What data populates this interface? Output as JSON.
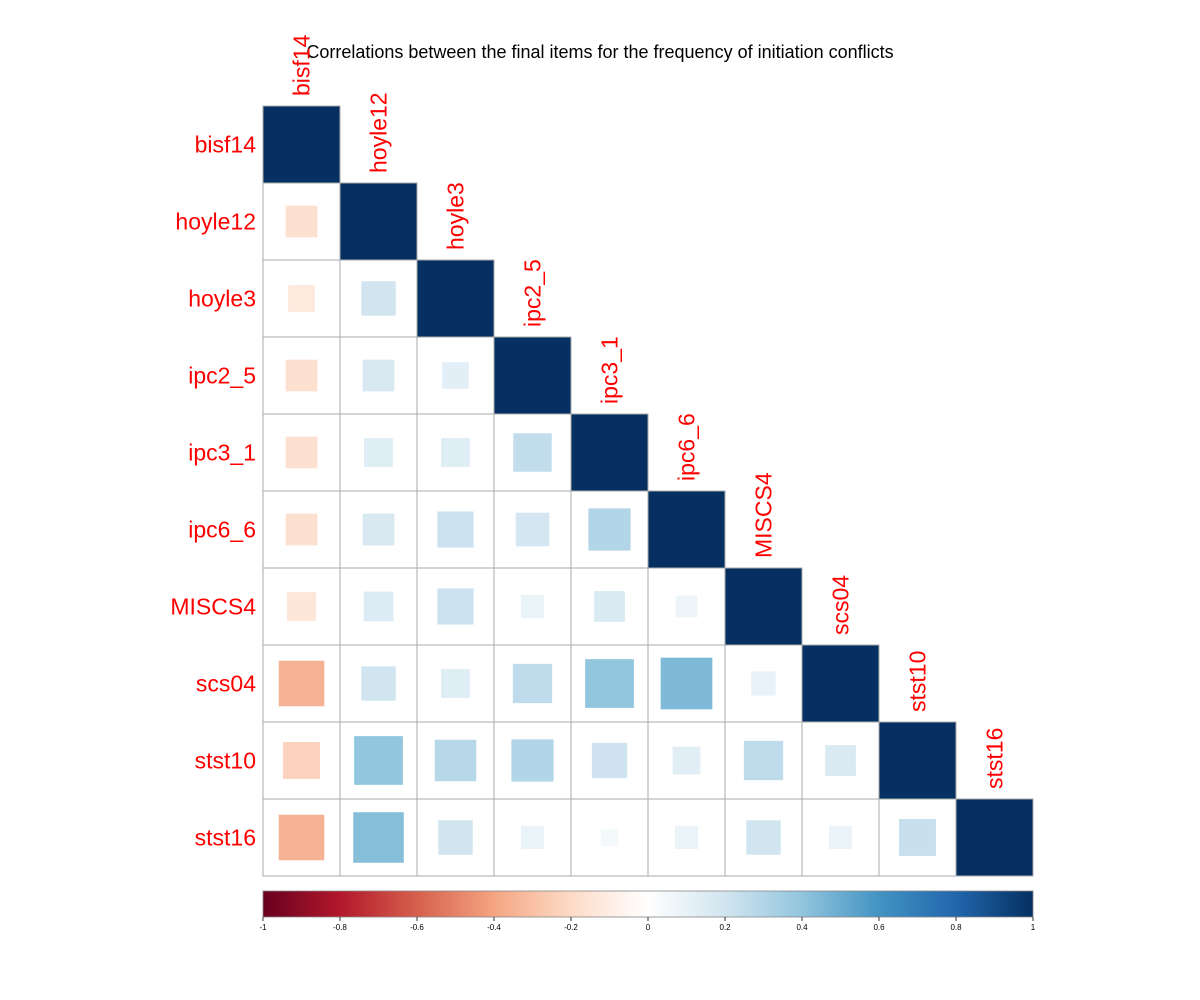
{
  "chart_data": {
    "type": "heatmap",
    "title": "Correlations between the final items for the frequency of initiation conflicts",
    "variables": [
      "bisf14",
      "hoyle12",
      "hoyle3",
      "ipc2_5",
      "ipc3_1",
      "ipc6_6",
      "MISCS4",
      "scs04",
      "stst10",
      "stst16"
    ],
    "layout": "lower triangle with diagonal",
    "method": "square",
    "matrix": [
      [
        1.0
      ],
      [
        -0.17,
        1.0
      ],
      [
        -0.12,
        0.2,
        1.0
      ],
      [
        -0.17,
        0.17,
        0.12,
        1.0
      ],
      [
        -0.17,
        0.14,
        0.14,
        0.25,
        1.0
      ],
      [
        -0.17,
        0.17,
        0.22,
        0.19,
        0.3,
        1.0
      ],
      [
        -0.14,
        0.15,
        0.22,
        0.09,
        0.16,
        0.08,
        1.0
      ],
      [
        -0.35,
        0.2,
        0.14,
        0.26,
        0.4,
        0.45,
        0.1,
        1.0
      ],
      [
        -0.23,
        0.4,
        0.29,
        0.3,
        0.21,
        0.13,
        0.26,
        0.16,
        1.0
      ],
      [
        -0.35,
        0.43,
        0.2,
        0.09,
        0.05,
        0.09,
        0.2,
        0.09,
        0.23,
        1.0
      ]
    ],
    "colorbar": {
      "range": [
        -1,
        1
      ],
      "ticks": [
        "-1",
        "-0.8",
        "-0.6",
        "-0.4",
        "-0.2",
        "0",
        "0.2",
        "0.4",
        "0.6",
        "0.8",
        "1"
      ]
    },
    "colors": {
      "low": "#67001f",
      "mid": "#ffffff",
      "high": "#053061",
      "label": "#ff0000",
      "grid": "#aaaaaa"
    }
  }
}
